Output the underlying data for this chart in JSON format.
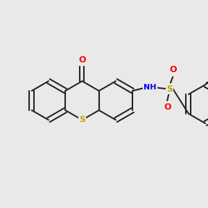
{
  "background_color": "#e9e9e9",
  "bond_color": "#222222",
  "bond_lw": 1.5,
  "atom_colors": {
    "O": "#ff0000",
    "N": "#0000ee",
    "S": "#bbaa00",
    "H": "#888888"
  },
  "figsize": [
    3.0,
    3.0
  ],
  "dpi": 100
}
